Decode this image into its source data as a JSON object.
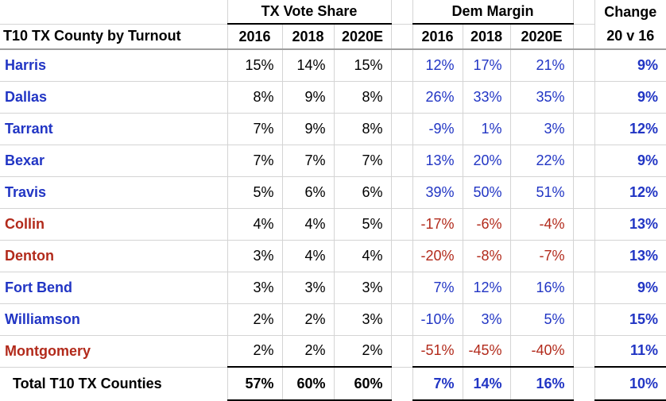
{
  "header": {
    "corner": "",
    "row_header": "T10 TX County by Turnout",
    "group_vote_share": "TX Vote Share",
    "group_dem_margin": "Dem Margin",
    "group_change": "Change",
    "vote_share_years": [
      "2016",
      "2018",
      "2020E"
    ],
    "dem_margin_years": [
      "2016",
      "2018",
      "2020E"
    ],
    "change_sub": "20 v 16"
  },
  "rows": [
    {
      "county": "Harris",
      "party": "blue",
      "vote_share": [
        "15%",
        "14%",
        "15%"
      ],
      "dem_margin": [
        "12%",
        "17%",
        "21%"
      ],
      "change": "9%"
    },
    {
      "county": "Dallas",
      "party": "blue",
      "vote_share": [
        "8%",
        "9%",
        "8%"
      ],
      "dem_margin": [
        "26%",
        "33%",
        "35%"
      ],
      "change": "9%"
    },
    {
      "county": "Tarrant",
      "party": "blue",
      "vote_share": [
        "7%",
        "9%",
        "8%"
      ],
      "dem_margin": [
        "-9%",
        "1%",
        "3%"
      ],
      "change": "12%"
    },
    {
      "county": "Bexar",
      "party": "blue",
      "vote_share": [
        "7%",
        "7%",
        "7%"
      ],
      "dem_margin": [
        "13%",
        "20%",
        "22%"
      ],
      "change": "9%"
    },
    {
      "county": "Travis",
      "party": "blue",
      "vote_share": [
        "5%",
        "6%",
        "6%"
      ],
      "dem_margin": [
        "39%",
        "50%",
        "51%"
      ],
      "change": "12%"
    },
    {
      "county": "Collin",
      "party": "red",
      "vote_share": [
        "4%",
        "4%",
        "5%"
      ],
      "dem_margin": [
        "-17%",
        "-6%",
        "-4%"
      ],
      "change": "13%"
    },
    {
      "county": "Denton",
      "party": "red",
      "vote_share": [
        "3%",
        "4%",
        "4%"
      ],
      "dem_margin": [
        "-20%",
        "-8%",
        "-7%"
      ],
      "change": "13%"
    },
    {
      "county": "Fort Bend",
      "party": "blue",
      "vote_share": [
        "3%",
        "3%",
        "3%"
      ],
      "dem_margin": [
        "7%",
        "12%",
        "16%"
      ],
      "change": "9%"
    },
    {
      "county": "Williamson",
      "party": "blue",
      "vote_share": [
        "2%",
        "2%",
        "3%"
      ],
      "dem_margin": [
        "-10%",
        "3%",
        "5%"
      ],
      "change": "15%"
    },
    {
      "county": "Montgomery",
      "party": "red",
      "vote_share": [
        "2%",
        "2%",
        "2%"
      ],
      "dem_margin": [
        "-51%",
        "-45%",
        "-40%"
      ],
      "change": "11%"
    }
  ],
  "total": {
    "label": "Total T10 TX Counties",
    "vote_share": [
      "57%",
      "60%",
      "60%"
    ],
    "dem_margin": [
      "7%",
      "14%",
      "16%"
    ],
    "change": "10%"
  },
  "colors": {
    "dem_blue": "#2135c4",
    "gop_red": "#b22a1b",
    "gridline": "#d4d4d4",
    "header_rule": "#9e9e9e",
    "text_black": "#000000"
  },
  "chart_data": {
    "type": "table",
    "title": "T10 TX County by Turnout",
    "column_groups": [
      "TX Vote Share",
      "Dem Margin",
      "Change"
    ],
    "columns": [
      "TX Vote Share 2016",
      "TX Vote Share 2018",
      "TX Vote Share 2020E",
      "Dem Margin 2016",
      "Dem Margin 2018",
      "Dem Margin 2020E",
      "Change 20 v 16"
    ],
    "units": "percent",
    "rows": [
      {
        "county": "Harris",
        "tx_vote_share": [
          15,
          14,
          15
        ],
        "dem_margin": [
          12,
          17,
          21
        ],
        "change_20_v_16": 9,
        "highlight": "blue"
      },
      {
        "county": "Dallas",
        "tx_vote_share": [
          8,
          9,
          8
        ],
        "dem_margin": [
          26,
          33,
          35
        ],
        "change_20_v_16": 9,
        "highlight": "blue"
      },
      {
        "county": "Tarrant",
        "tx_vote_share": [
          7,
          9,
          8
        ],
        "dem_margin": [
          -9,
          1,
          3
        ],
        "change_20_v_16": 12,
        "highlight": "blue"
      },
      {
        "county": "Bexar",
        "tx_vote_share": [
          7,
          7,
          7
        ],
        "dem_margin": [
          13,
          20,
          22
        ],
        "change_20_v_16": 9,
        "highlight": "blue"
      },
      {
        "county": "Travis",
        "tx_vote_share": [
          5,
          6,
          6
        ],
        "dem_margin": [
          39,
          50,
          51
        ],
        "change_20_v_16": 12,
        "highlight": "blue"
      },
      {
        "county": "Collin",
        "tx_vote_share": [
          4,
          4,
          5
        ],
        "dem_margin": [
          -17,
          -6,
          -4
        ],
        "change_20_v_16": 13,
        "highlight": "red"
      },
      {
        "county": "Denton",
        "tx_vote_share": [
          3,
          4,
          4
        ],
        "dem_margin": [
          -20,
          -8,
          -7
        ],
        "change_20_v_16": 13,
        "highlight": "red"
      },
      {
        "county": "Fort Bend",
        "tx_vote_share": [
          3,
          3,
          3
        ],
        "dem_margin": [
          7,
          12,
          16
        ],
        "change_20_v_16": 9,
        "highlight": "blue"
      },
      {
        "county": "Williamson",
        "tx_vote_share": [
          2,
          2,
          3
        ],
        "dem_margin": [
          -10,
          3,
          5
        ],
        "change_20_v_16": 15,
        "highlight": "blue"
      },
      {
        "county": "Montgomery",
        "tx_vote_share": [
          2,
          2,
          2
        ],
        "dem_margin": [
          -51,
          -45,
          -40
        ],
        "change_20_v_16": 11,
        "highlight": "red"
      }
    ],
    "total_row": {
      "label": "Total T10 TX Counties",
      "tx_vote_share": [
        57,
        60,
        60
      ],
      "dem_margin": [
        7,
        14,
        16
      ],
      "change_20_v_16": 10
    }
  }
}
